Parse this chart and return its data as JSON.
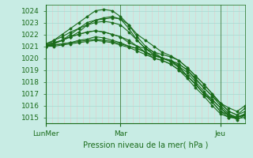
{
  "title": "Pression niveau de la mer( hPa )",
  "xlim": [
    0,
    96
  ],
  "ylim": [
    1014.5,
    1024.5
  ],
  "yticks": [
    1015,
    1016,
    1017,
    1018,
    1019,
    1020,
    1021,
    1022,
    1023,
    1024
  ],
  "xtick_positions": [
    0,
    36,
    84
  ],
  "xtick_labels": [
    "LunMer",
    "Mar",
    "Jeu"
  ],
  "bg_color": "#c8ece4",
  "grid_color_v": "#e8c8c8",
  "grid_color_h": "#a8d8d0",
  "line_color": "#1a6b1a",
  "figsize": [
    3.2,
    2.0
  ],
  "dpi": 100,
  "lines": [
    {
      "x": [
        0,
        4,
        8,
        12,
        16,
        20,
        24,
        28,
        32,
        36,
        40,
        44,
        48,
        52,
        56,
        60,
        64,
        68,
        72,
        76,
        80,
        84,
        88,
        92,
        96
      ],
      "y": [
        1021.0,
        1021.3,
        1021.5,
        1021.8,
        1022.2,
        1022.8,
        1023.2,
        1023.4,
        1023.5,
        1023.3,
        1022.8,
        1022.0,
        1021.5,
        1021.0,
        1020.5,
        1020.2,
        1019.8,
        1019.2,
        1018.5,
        1017.8,
        1017.0,
        1016.2,
        1015.5,
        1015.2,
        1015.8
      ]
    },
    {
      "x": [
        0,
        4,
        8,
        12,
        16,
        20,
        24,
        28,
        32,
        36,
        40,
        44,
        48,
        52,
        56,
        60,
        64,
        68,
        72,
        76,
        80,
        84,
        88,
        92,
        96
      ],
      "y": [
        1021.0,
        1021.5,
        1022.0,
        1022.5,
        1023.0,
        1023.5,
        1024.0,
        1024.1,
        1024.0,
        1023.5,
        1022.8,
        1021.8,
        1021.0,
        1020.5,
        1020.0,
        1019.7,
        1019.2,
        1018.5,
        1017.8,
        1017.0,
        1016.5,
        1015.8,
        1015.2,
        1014.8,
        1015.2
      ]
    },
    {
      "x": [
        0,
        4,
        8,
        12,
        16,
        20,
        24,
        28,
        32,
        36,
        40,
        44,
        48,
        52,
        56,
        60,
        64,
        68,
        72,
        76,
        80,
        84,
        88,
        92,
        96
      ],
      "y": [
        1021.0,
        1021.2,
        1021.5,
        1022.0,
        1022.5,
        1023.0,
        1023.2,
        1023.3,
        1023.4,
        1023.3,
        1022.5,
        1021.5,
        1020.8,
        1020.3,
        1020.0,
        1019.8,
        1019.5,
        1019.0,
        1018.2,
        1017.5,
        1016.8,
        1016.2,
        1015.8,
        1015.5,
        1016.0
      ]
    },
    {
      "x": [
        0,
        4,
        8,
        12,
        16,
        20,
        24,
        28,
        32,
        36,
        40,
        44,
        48,
        52,
        56,
        60,
        64,
        68,
        72,
        76,
        80,
        84,
        88,
        92,
        96
      ],
      "y": [
        1021.2,
        1021.3,
        1021.5,
        1021.8,
        1022.0,
        1022.2,
        1022.3,
        1022.2,
        1022.0,
        1021.8,
        1021.3,
        1021.0,
        1020.8,
        1020.5,
        1020.3,
        1020.1,
        1019.8,
        1019.2,
        1018.5,
        1017.8,
        1017.0,
        1016.2,
        1015.5,
        1015.2,
        1015.5
      ]
    },
    {
      "x": [
        0,
        4,
        8,
        12,
        16,
        20,
        24,
        28,
        32,
        36,
        40,
        44,
        48,
        52,
        56,
        60,
        64,
        68,
        72,
        76,
        80,
        84,
        88,
        92,
        96
      ],
      "y": [
        1021.0,
        1021.1,
        1021.2,
        1021.3,
        1021.5,
        1021.6,
        1021.8,
        1021.7,
        1021.5,
        1021.3,
        1021.0,
        1020.8,
        1020.5,
        1020.2,
        1020.0,
        1019.8,
        1019.5,
        1019.0,
        1018.3,
        1017.5,
        1016.8,
        1016.0,
        1015.3,
        1015.0,
        1015.2
      ]
    },
    {
      "x": [
        0,
        4,
        8,
        12,
        16,
        20,
        24,
        28,
        32,
        36,
        40,
        44,
        48,
        52,
        56,
        60,
        64,
        68,
        72,
        76,
        80,
        84,
        88,
        92,
        96
      ],
      "y": [
        1021.0,
        1021.1,
        1021.2,
        1021.3,
        1021.4,
        1021.5,
        1021.6,
        1021.5,
        1021.4,
        1021.2,
        1021.0,
        1020.8,
        1020.5,
        1020.2,
        1020.0,
        1019.8,
        1019.3,
        1018.8,
        1018.0,
        1017.2,
        1016.5,
        1015.8,
        1015.1,
        1015.0,
        1015.3
      ]
    },
    {
      "x": [
        0,
        4,
        8,
        12,
        16,
        20,
        24,
        28,
        32,
        36,
        40,
        44,
        48,
        52,
        56,
        60,
        64,
        68,
        72,
        76,
        80,
        84,
        88,
        92,
        96
      ],
      "y": [
        1021.0,
        1021.0,
        1021.1,
        1021.2,
        1021.3,
        1021.4,
        1021.5,
        1021.4,
        1021.3,
        1021.1,
        1020.9,
        1020.6,
        1020.3,
        1020.0,
        1019.8,
        1019.5,
        1019.0,
        1018.5,
        1017.8,
        1017.0,
        1016.3,
        1015.5,
        1015.0,
        1015.0,
        1015.2
      ]
    },
    {
      "x": [
        0,
        4,
        8,
        12,
        16,
        20,
        24,
        28,
        32,
        36,
        40,
        44,
        48,
        52,
        56,
        60,
        64,
        68,
        72,
        76,
        80,
        84,
        88,
        92,
        96
      ],
      "y": [
        1021.2,
        1021.5,
        1021.8,
        1022.2,
        1022.5,
        1022.8,
        1023.0,
        1023.1,
        1023.0,
        1022.8,
        1022.2,
        1021.5,
        1020.8,
        1020.3,
        1020.0,
        1019.8,
        1019.3,
        1018.5,
        1017.8,
        1017.0,
        1016.3,
        1015.5,
        1015.2,
        1015.0,
        1015.3
      ]
    },
    {
      "x": [
        0,
        4,
        8,
        12,
        16,
        20,
        24,
        28,
        32,
        36,
        40,
        44,
        48,
        52,
        56,
        60,
        64,
        68,
        72,
        76,
        80,
        84,
        88,
        92,
        96
      ],
      "y": [
        1021.0,
        1021.2,
        1021.5,
        1021.8,
        1022.0,
        1022.2,
        1022.3,
        1022.2,
        1022.0,
        1021.8,
        1021.5,
        1021.0,
        1020.5,
        1020.0,
        1019.8,
        1019.5,
        1019.0,
        1018.3,
        1017.5,
        1016.8,
        1016.0,
        1015.3,
        1015.0,
        1014.9,
        1015.0
      ]
    }
  ]
}
